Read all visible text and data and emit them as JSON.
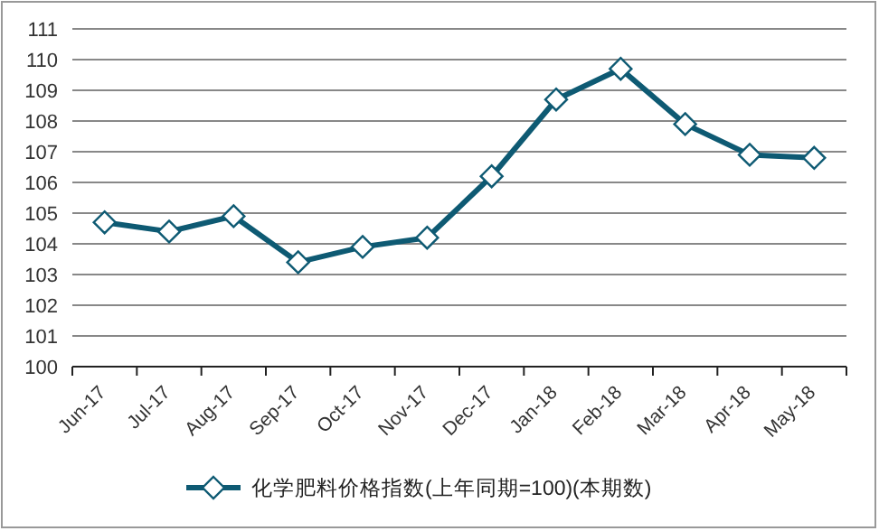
{
  "chart_data": {
    "type": "line",
    "categories": [
      "Jun-17",
      "Jul-17",
      "Aug-17",
      "Sep-17",
      "Oct-17",
      "Nov-17",
      "Dec-17",
      "Jan-18",
      "Feb-18",
      "Mar-18",
      "Apr-18",
      "May-18"
    ],
    "series": [
      {
        "name": "化学肥料价格指数(上年同期=100)(本期数)",
        "color": "#0e5a73",
        "values": [
          104.7,
          104.4,
          104.9,
          103.4,
          103.9,
          104.2,
          106.2,
          108.7,
          109.7,
          107.9,
          106.9,
          106.8
        ]
      }
    ],
    "ylim": [
      100,
      111
    ],
    "yticks": [
      100,
      101,
      102,
      103,
      104,
      105,
      106,
      107,
      108,
      109,
      110,
      111
    ],
    "grid": "y",
    "legend": "bottom",
    "marker": "diamond",
    "line_style": "solid"
  }
}
